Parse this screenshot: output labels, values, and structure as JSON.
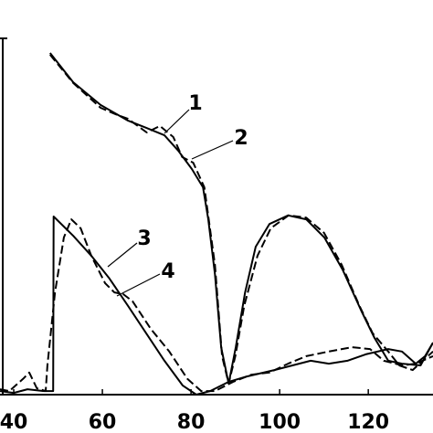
{
  "chart_data": {
    "type": "line",
    "xlim": [
      36.9,
      134.6
    ],
    "xticks": [
      40,
      60,
      80,
      100,
      120
    ],
    "ylim": [
      0,
      100
    ],
    "series": [
      {
        "name": "1",
        "color": "#000000",
        "linestyle": "solid",
        "x": [
          48.2,
          53.4,
          59.6,
          65.8,
          69.9,
          74.0,
          77.1,
          80.2,
          82.7,
          83.9,
          85.4,
          86.8,
          88.5,
          90.1,
          92.2,
          94.6,
          97.7,
          101.9,
          106.0,
          110.1,
          114.2,
          118.4,
          121.4,
          124.5,
          127.6,
          131.8,
          134.6
        ],
        "values": [
          95.9,
          87.7,
          81.3,
          76.9,
          74.9,
          72.8,
          68.5,
          63.3,
          58.2,
          49.2,
          33.8,
          13.3,
          3.1,
          13.3,
          28.7,
          41.5,
          47.9,
          50.3,
          49.2,
          44.1,
          35.1,
          23.6,
          15.9,
          9.5,
          8.7,
          8.2,
          14.6
        ]
      },
      {
        "name": "2",
        "color": "#000000",
        "linestyle": "dashed",
        "x": [
          48.2,
          53.4,
          59.6,
          63.0,
          65.8,
          68.0,
          70.0,
          73.0,
          76.0,
          78.0,
          80.5,
          83.0,
          85.4,
          87.0,
          88.5,
          90.0,
          92.0,
          95.0,
          98.0,
          102.0,
          106.0,
          110.0,
          114.0,
          118.0,
          121.0,
          124.5,
          127.0,
          130.0,
          134.6
        ],
        "values": [
          95.4,
          87.5,
          80.5,
          78.7,
          77.4,
          75.4,
          73.6,
          75.4,
          72.3,
          66.7,
          65.1,
          58.2,
          36.4,
          10.8,
          3.1,
          10.8,
          24.9,
          39.0,
          46.7,
          50.3,
          49.7,
          45.4,
          36.4,
          24.9,
          17.2,
          12.1,
          8.2,
          6.9,
          12.1
        ]
      },
      {
        "name": "3",
        "color": "#000000",
        "linestyle": "solid",
        "x": [
          36.9,
          40.0,
          43.1,
          46.8,
          48.9,
          49.0,
          53.4,
          57.5,
          61.6,
          65.8,
          69.9,
          74.0,
          78.1,
          81.2,
          84.3,
          88.5,
          92.6,
          98.8,
          102.9,
          107.0,
          111.1,
          115.3,
          119.4,
          124.5,
          127.6,
          130.7,
          132.8,
          134.6
        ],
        "values": [
          1.0,
          0.5,
          1.5,
          1.0,
          1.0,
          50.0,
          44.6,
          39.0,
          32.6,
          24.9,
          17.2,
          9.5,
          2.6,
          0.0,
          1.0,
          3.6,
          5.1,
          6.9,
          8.2,
          9.5,
          8.7,
          9.5,
          11.3,
          12.8,
          12.1,
          8.7,
          10.8,
          14.6
        ]
      },
      {
        "name": "4",
        "color": "#000000",
        "linestyle": "dashed",
        "x": [
          36.9,
          39.0,
          42.1,
          43.5,
          45.2,
          47.2,
          47.6,
          49.3,
          51.3,
          53.0,
          55.1,
          57.5,
          60.6,
          62.7,
          64.7,
          66.8,
          70.9,
          75.1,
          79.2,
          82.3,
          85.4,
          89.5,
          93.6,
          97.7,
          101.9,
          106.0,
          111.1,
          116.3,
          120.4,
          123.5,
          127.6,
          130.7,
          134.6
        ],
        "values": [
          1.5,
          1.0,
          4.4,
          6.2,
          1.8,
          1.0,
          8.2,
          28.7,
          44.1,
          49.2,
          46.7,
          39.0,
          31.3,
          28.7,
          28.2,
          26.2,
          18.5,
          12.1,
          4.4,
          1.0,
          1.0,
          3.6,
          5.6,
          6.2,
          8.7,
          10.8,
          12.1,
          13.3,
          12.8,
          9.5,
          8.2,
          8.7,
          10.8
        ]
      }
    ]
  }
}
